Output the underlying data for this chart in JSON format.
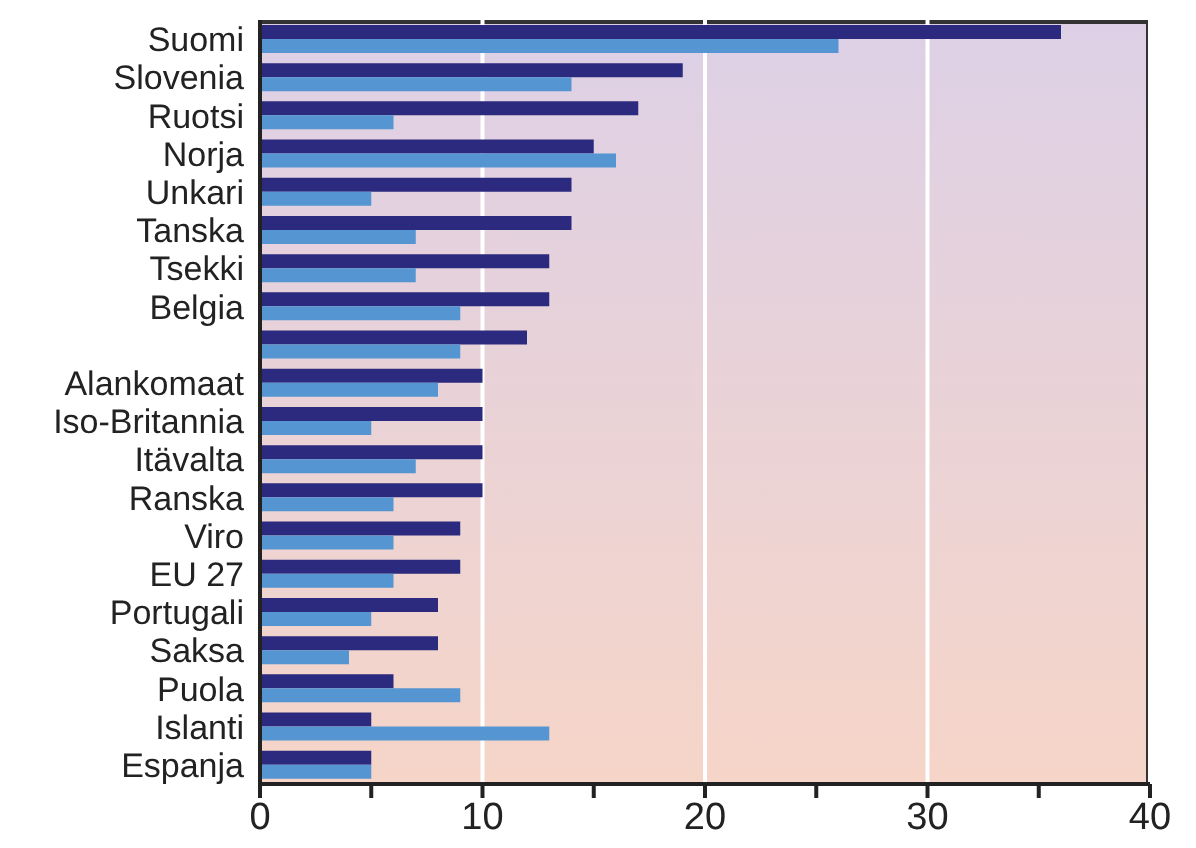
{
  "chart_data": {
    "type": "bar",
    "orientation": "horizontal",
    "categories": [
      "Suomi",
      "Slovenia",
      "Ruotsi",
      "Norja",
      "Unkari",
      "Tanska",
      "Tsekki",
      "Belgia",
      null,
      "Alankomaat",
      "Iso-Britannia",
      "Itävalta",
      "Ranska",
      "Viro",
      "EU 27",
      "Portugali",
      "Saksa",
      "Puola",
      "Islanti",
      "Espanja"
    ],
    "series": [
      {
        "color": "#2b2a7e",
        "values": [
          36,
          19,
          17,
          15,
          14,
          14,
          13,
          13,
          12,
          10,
          10,
          10,
          10,
          9,
          9,
          8,
          8,
          6,
          5,
          5
        ]
      },
      {
        "color": "#5595d2",
        "values": [
          26,
          14,
          6,
          16,
          5,
          7,
          7,
          9,
          9,
          8,
          5,
          7,
          6,
          6,
          6,
          5,
          4,
          9,
          13,
          5
        ]
      }
    ],
    "xlim": [
      0,
      40
    ],
    "xticks": [
      0,
      {
        "value": 5,
        "label": null
      },
      10,
      {
        "value": 15,
        "label": null
      },
      20,
      {
        "value": 25,
        "label": null
      },
      30,
      {
        "value": 35,
        "label": null
      },
      40
    ],
    "grid": "x"
  }
}
